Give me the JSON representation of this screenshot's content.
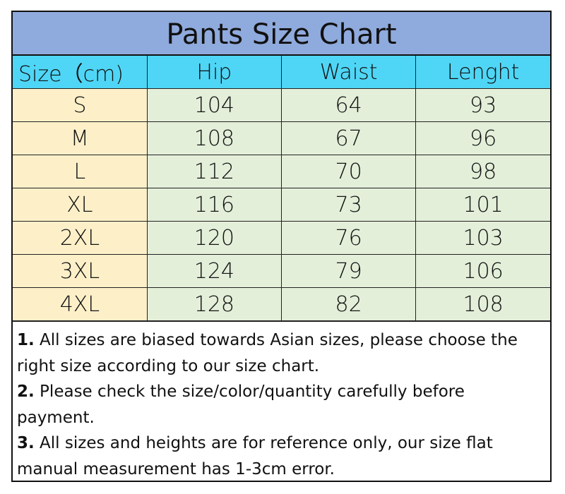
{
  "title": "Pants Size Chart",
  "headers": [
    "Size（cm)",
    "Hip",
    "Waist",
    "Lenght"
  ],
  "rows": [
    [
      "S",
      "104",
      "64",
      "93"
    ],
    [
      "M",
      "108",
      "67",
      "96"
    ],
    [
      "L",
      "112",
      "70",
      "98"
    ],
    [
      "XL",
      "116",
      "73",
      "101"
    ],
    [
      "2XL",
      "120",
      "76",
      "103"
    ],
    [
      "3XL",
      "124",
      "79",
      "106"
    ],
    [
      "4XL",
      "128",
      "82",
      "108"
    ]
  ],
  "notes": [
    {
      "num": "1.",
      "text": " All sizes are biased towards Asian sizes, please choose the right size according to our size chart."
    },
    {
      "num": "2.",
      "text": " Please check the size/color/quantity carefully before payment."
    },
    {
      "num": "3.",
      "text": " All sizes and heights are for reference only, our size flat manual measurement has 1-3cm error."
    }
  ],
  "colors": {
    "title_bg": "#8faadc",
    "header_bg": "#4fd6f6",
    "size_col_bg": "#fdf0c9",
    "value_bg": "#e3efd9"
  }
}
